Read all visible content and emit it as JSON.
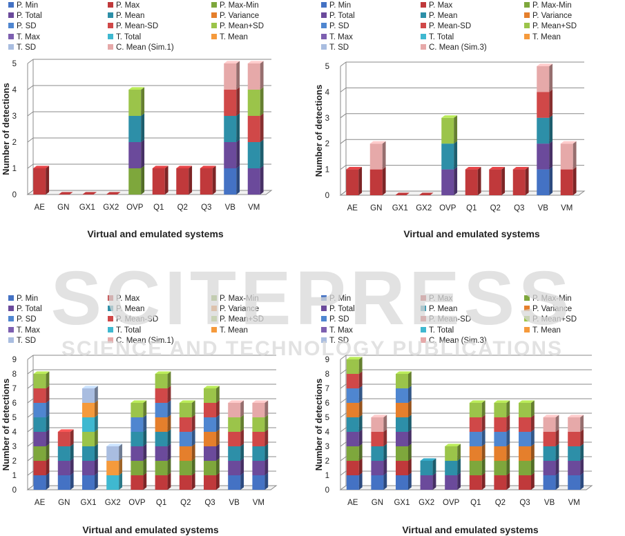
{
  "colors": {
    "P. Min": "#4472c4",
    "P. Max": "#c0393b",
    "P. Max-Min": "#7ea73c",
    "P. Total": "#6b4a9b",
    "P. Mean": "#2d8fa8",
    "P. Variance": "#e57f2c",
    "P. SD": "#4f86d0",
    "P. Mean-SD": "#d04848",
    "P. Mean+SD": "#9bc44a",
    "T. Max": "#7d5fb0",
    "T. Total": "#3fb8d0",
    "T. Mean": "#f59a3c",
    "T. SD": "#a9bde0",
    "C. Mean": "#e6a9a9"
  },
  "watermark": {
    "main": "SCITEPRESS",
    "sub": "SCIENCE AND TECHNOLOGY PUBLICATIONS"
  },
  "chart_data": [
    {
      "type": "bar",
      "stacked": true,
      "legend_entries": [
        "P. Min",
        "P. Max",
        "P. Max-Min",
        "P. Total",
        "P. Mean",
        "P. Variance",
        "P. SD",
        "P. Mean-SD",
        "P. Mean+SD",
        "T. Max",
        "T. Total",
        "T. Mean",
        "T. SD",
        "C. Mean (Sim.1)"
      ],
      "categories": [
        "AE",
        "GN",
        "GX1",
        "GX2",
        "OVP",
        "Q1",
        "Q2",
        "Q3",
        "VB",
        "VM"
      ],
      "xlabel": "Virtual and emulated systems",
      "ylabel": "Number of detections",
      "ylim": [
        0,
        5
      ],
      "ticks": [
        "0",
        "1",
        "2",
        "3",
        "4",
        "5"
      ],
      "series": [
        {
          "name": "P. Min",
          "color_key": "P. Min",
          "values": [
            0,
            0,
            0,
            0,
            0,
            0,
            0,
            0,
            1,
            0
          ]
        },
        {
          "name": "P. Max",
          "color_key": "P. Max",
          "values": [
            1,
            0,
            0,
            0,
            0,
            1,
            1,
            1,
            0,
            0
          ]
        },
        {
          "name": "P. Max-Min",
          "color_key": "P. Max-Min",
          "values": [
            0,
            0,
            0,
            0,
            1,
            0,
            0,
            0,
            0,
            0
          ]
        },
        {
          "name": "P. Total",
          "color_key": "P. Total",
          "values": [
            0,
            0,
            0,
            0,
            1,
            0,
            0,
            0,
            1,
            1
          ]
        },
        {
          "name": "P. Mean",
          "color_key": "P. Mean",
          "values": [
            0,
            0,
            0,
            0,
            1,
            0,
            0,
            0,
            1,
            1
          ]
        },
        {
          "name": "P. Variance",
          "color_key": "P. Variance",
          "values": [
            0,
            0,
            0,
            0,
            0,
            0,
            0,
            0,
            0,
            0
          ]
        },
        {
          "name": "P. SD",
          "color_key": "P. SD",
          "values": [
            0,
            0,
            0,
            0,
            0,
            0,
            0,
            0,
            0,
            0
          ]
        },
        {
          "name": "P. Mean-SD",
          "color_key": "P. Mean-SD",
          "values": [
            0,
            0,
            0,
            0,
            0,
            0,
            0,
            0,
            1,
            1
          ]
        },
        {
          "name": "P. Mean+SD",
          "color_key": "P. Mean+SD",
          "values": [
            0,
            0,
            0,
            0,
            1,
            0,
            0,
            0,
            0,
            1
          ]
        },
        {
          "name": "T. Max",
          "color_key": "T. Max",
          "values": [
            0,
            0,
            0,
            0,
            0,
            0,
            0,
            0,
            0,
            0
          ]
        },
        {
          "name": "T. Total",
          "color_key": "T. Total",
          "values": [
            0,
            0,
            0,
            0,
            0,
            0,
            0,
            0,
            0,
            0
          ]
        },
        {
          "name": "T. Mean",
          "color_key": "T. Mean",
          "values": [
            0,
            0,
            0,
            0,
            0,
            0,
            0,
            0,
            0,
            0
          ]
        },
        {
          "name": "T. SD",
          "color_key": "T. SD",
          "values": [
            0,
            0,
            0,
            0,
            0,
            0,
            0,
            0,
            0,
            0
          ]
        },
        {
          "name": "C. Mean (Sim.1)",
          "color_key": "C. Mean",
          "values": [
            0,
            0,
            0,
            0,
            0,
            0,
            0,
            0,
            1,
            1
          ]
        }
      ]
    },
    {
      "type": "bar",
      "stacked": true,
      "legend_entries": [
        "P. Min",
        "P. Max",
        "P. Max-Min",
        "P. Total",
        "P. Mean",
        "P. Variance",
        "P. SD",
        "P. Mean-SD",
        "P. Mean+SD",
        "T. Max",
        "T. Total",
        "T. Mean",
        "T. SD",
        "C. Mean (Sim.3)"
      ],
      "categories": [
        "AE",
        "GN",
        "GX1",
        "GX2",
        "OVP",
        "Q1",
        "Q2",
        "Q3",
        "VB",
        "VM"
      ],
      "xlabel": "Virtual and emulated systems",
      "ylabel": "Number of detections",
      "ylim": [
        0,
        5
      ],
      "ticks": [
        "0",
        "1",
        "2",
        "3",
        "4",
        "5"
      ],
      "series": [
        {
          "name": "P. Min",
          "color_key": "P. Min",
          "values": [
            0,
            0,
            0,
            0,
            0,
            0,
            0,
            0,
            1,
            0
          ]
        },
        {
          "name": "P. Max",
          "color_key": "P. Max",
          "values": [
            1,
            1,
            0,
            0,
            0,
            1,
            1,
            1,
            0,
            1
          ]
        },
        {
          "name": "P. Max-Min",
          "color_key": "P. Max-Min",
          "values": [
            0,
            0,
            0,
            0,
            0,
            0,
            0,
            0,
            0,
            0
          ]
        },
        {
          "name": "P. Total",
          "color_key": "P. Total",
          "values": [
            0,
            0,
            0,
            0,
            1,
            0,
            0,
            0,
            1,
            0
          ]
        },
        {
          "name": "P. Mean",
          "color_key": "P. Mean",
          "values": [
            0,
            0,
            0,
            0,
            1,
            0,
            0,
            0,
            1,
            0
          ]
        },
        {
          "name": "P. Variance",
          "color_key": "P. Variance",
          "values": [
            0,
            0,
            0,
            0,
            0,
            0,
            0,
            0,
            0,
            0
          ]
        },
        {
          "name": "P. SD",
          "color_key": "P. SD",
          "values": [
            0,
            0,
            0,
            0,
            0,
            0,
            0,
            0,
            0,
            0
          ]
        },
        {
          "name": "P. Mean-SD",
          "color_key": "P. Mean-SD",
          "values": [
            0,
            0,
            0,
            0,
            0,
            0,
            0,
            0,
            1,
            0
          ]
        },
        {
          "name": "P. Mean+SD",
          "color_key": "P. Mean+SD",
          "values": [
            0,
            0,
            0,
            0,
            1,
            0,
            0,
            0,
            0,
            0
          ]
        },
        {
          "name": "T. Max",
          "color_key": "T. Max",
          "values": [
            0,
            0,
            0,
            0,
            0,
            0,
            0,
            0,
            0,
            0
          ]
        },
        {
          "name": "T. Total",
          "color_key": "T. Total",
          "values": [
            0,
            0,
            0,
            0,
            0,
            0,
            0,
            0,
            0,
            0
          ]
        },
        {
          "name": "T. Mean",
          "color_key": "T. Mean",
          "values": [
            0,
            0,
            0,
            0,
            0,
            0,
            0,
            0,
            0,
            0
          ]
        },
        {
          "name": "T. SD",
          "color_key": "T. SD",
          "values": [
            0,
            0,
            0,
            0,
            0,
            0,
            0,
            0,
            0,
            0
          ]
        },
        {
          "name": "C. Mean (Sim.3)",
          "color_key": "C. Mean",
          "values": [
            0,
            1,
            0,
            0,
            0,
            0,
            0,
            0,
            1,
            1
          ]
        }
      ]
    },
    {
      "type": "bar",
      "stacked": true,
      "legend_entries": [
        "P. Min",
        "P. Max",
        "P. Max-Min",
        "P. Total",
        "P. Mean",
        "P. Variance",
        "P. SD",
        "P. Mean-SD",
        "P. Mean+SD",
        "T. Max",
        "T. Total",
        "T. Mean",
        "T. SD",
        "C. Mean (Sim.1)"
      ],
      "categories": [
        "AE",
        "GN",
        "GX1",
        "GX2",
        "OVP",
        "Q1",
        "Q2",
        "Q3",
        "VB",
        "VM"
      ],
      "xlabel": "Virtual and emulated systems",
      "ylabel": "Number of detections",
      "ylim": [
        0,
        9
      ],
      "ticks": [
        "0",
        "1",
        "2",
        "3",
        "4",
        "5",
        "6",
        "7",
        "8",
        "9"
      ],
      "series": [
        {
          "name": "P. Min",
          "color_key": "P. Min",
          "values": [
            1,
            1,
            1,
            0,
            0,
            0,
            0,
            0,
            1,
            1
          ]
        },
        {
          "name": "P. Max",
          "color_key": "P. Max",
          "values": [
            1,
            0,
            0,
            0,
            1,
            1,
            1,
            1,
            0,
            0
          ]
        },
        {
          "name": "P. Max-Min",
          "color_key": "P. Max-Min",
          "values": [
            1,
            0,
            0,
            0,
            1,
            1,
            1,
            1,
            0,
            0
          ]
        },
        {
          "name": "P. Total",
          "color_key": "P. Total",
          "values": [
            1,
            1,
            1,
            0,
            1,
            1,
            0,
            1,
            1,
            1
          ]
        },
        {
          "name": "P. Mean",
          "color_key": "P. Mean",
          "values": [
            1,
            1,
            1,
            0,
            1,
            1,
            0,
            0,
            1,
            1
          ]
        },
        {
          "name": "P. Variance",
          "color_key": "P. Variance",
          "values": [
            0,
            0,
            0,
            0,
            0,
            1,
            1,
            1,
            0,
            0
          ]
        },
        {
          "name": "P. SD",
          "color_key": "P. SD",
          "values": [
            1,
            0,
            0,
            0,
            1,
            1,
            1,
            1,
            0,
            0
          ]
        },
        {
          "name": "P. Mean-SD",
          "color_key": "P. Mean-SD",
          "values": [
            1,
            1,
            0,
            0,
            0,
            1,
            1,
            1,
            1,
            1
          ]
        },
        {
          "name": "P. Mean+SD",
          "color_key": "P. Mean+SD",
          "values": [
            1,
            0,
            1,
            0,
            1,
            1,
            1,
            1,
            1,
            1
          ]
        },
        {
          "name": "T. Max",
          "color_key": "T. Max",
          "values": [
            0,
            0,
            0,
            0,
            0,
            0,
            0,
            0,
            0,
            0
          ]
        },
        {
          "name": "T. Total",
          "color_key": "T. Total",
          "values": [
            0,
            0,
            1,
            1,
            0,
            0,
            0,
            0,
            0,
            0
          ]
        },
        {
          "name": "T. Mean",
          "color_key": "T. Mean",
          "values": [
            0,
            0,
            1,
            1,
            0,
            0,
            0,
            0,
            0,
            0
          ]
        },
        {
          "name": "T. SD",
          "color_key": "T. SD",
          "values": [
            0,
            0,
            1,
            1,
            0,
            0,
            0,
            0,
            0,
            0
          ]
        },
        {
          "name": "C. Mean (Sim.1)",
          "color_key": "C. Mean",
          "values": [
            0,
            0,
            0,
            0,
            0,
            0,
            0,
            0,
            1,
            1
          ]
        }
      ]
    },
    {
      "type": "bar",
      "stacked": true,
      "legend_entries": [
        "P. Min",
        "P. Max",
        "P. Max-Min",
        "P. Total",
        "P. Mean",
        "P. Variance",
        "P. SD",
        "P. Mean-SD",
        "P. Mean+SD",
        "T. Max",
        "T. Total",
        "T. Mean",
        "T. SD",
        "C. Mean (Sim.3)"
      ],
      "categories": [
        "AE",
        "GN",
        "GX1",
        "GX2",
        "OVP",
        "Q1",
        "Q2",
        "Q3",
        "VB",
        "VM"
      ],
      "xlabel": "Virtual and emulated systems",
      "ylabel": "Number of detections",
      "ylim": [
        0,
        9
      ],
      "ticks": [
        "0",
        "1",
        "2",
        "3",
        "4",
        "5",
        "6",
        "7",
        "8",
        "9"
      ],
      "series": [
        {
          "name": "P. Min",
          "color_key": "P. Min",
          "values": [
            1,
            1,
            1,
            0,
            0,
            0,
            0,
            0,
            1,
            1
          ]
        },
        {
          "name": "P. Max",
          "color_key": "P. Max",
          "values": [
            1,
            0,
            1,
            0,
            0,
            1,
            1,
            1,
            0,
            0
          ]
        },
        {
          "name": "P. Max-Min",
          "color_key": "P. Max-Min",
          "values": [
            1,
            0,
            1,
            0,
            0,
            1,
            1,
            1,
            0,
            0
          ]
        },
        {
          "name": "P. Total",
          "color_key": "P. Total",
          "values": [
            1,
            1,
            1,
            1,
            1,
            0,
            0,
            0,
            1,
            1
          ]
        },
        {
          "name": "P. Mean",
          "color_key": "P. Mean",
          "values": [
            1,
            1,
            1,
            1,
            1,
            0,
            0,
            0,
            1,
            1
          ]
        },
        {
          "name": "P. Variance",
          "color_key": "P. Variance",
          "values": [
            1,
            0,
            1,
            0,
            0,
            1,
            1,
            1,
            0,
            0
          ]
        },
        {
          "name": "P. SD",
          "color_key": "P. SD",
          "values": [
            1,
            0,
            1,
            0,
            0,
            1,
            1,
            1,
            0,
            0
          ]
        },
        {
          "name": "P. Mean-SD",
          "color_key": "P. Mean-SD",
          "values": [
            1,
            1,
            0,
            0,
            0,
            1,
            1,
            1,
            1,
            1
          ]
        },
        {
          "name": "P. Mean+SD",
          "color_key": "P. Mean+SD",
          "values": [
            1,
            0,
            1,
            0,
            1,
            1,
            1,
            1,
            0,
            0
          ]
        },
        {
          "name": "T. Max",
          "color_key": "T. Max",
          "values": [
            0,
            0,
            0,
            0,
            0,
            0,
            0,
            0,
            0,
            0
          ]
        },
        {
          "name": "T. Total",
          "color_key": "T. Total",
          "values": [
            0,
            0,
            0,
            0,
            0,
            0,
            0,
            0,
            0,
            0
          ]
        },
        {
          "name": "T. Mean",
          "color_key": "T. Mean",
          "values": [
            0,
            0,
            0,
            0,
            0,
            0,
            0,
            0,
            0,
            0
          ]
        },
        {
          "name": "T. SD",
          "color_key": "T. SD",
          "values": [
            0,
            0,
            0,
            0,
            0,
            0,
            0,
            0,
            0,
            0
          ]
        },
        {
          "name": "C. Mean (Sim.3)",
          "color_key": "C. Mean",
          "values": [
            0,
            1,
            0,
            0,
            0,
            0,
            0,
            0,
            1,
            1
          ]
        }
      ]
    }
  ]
}
